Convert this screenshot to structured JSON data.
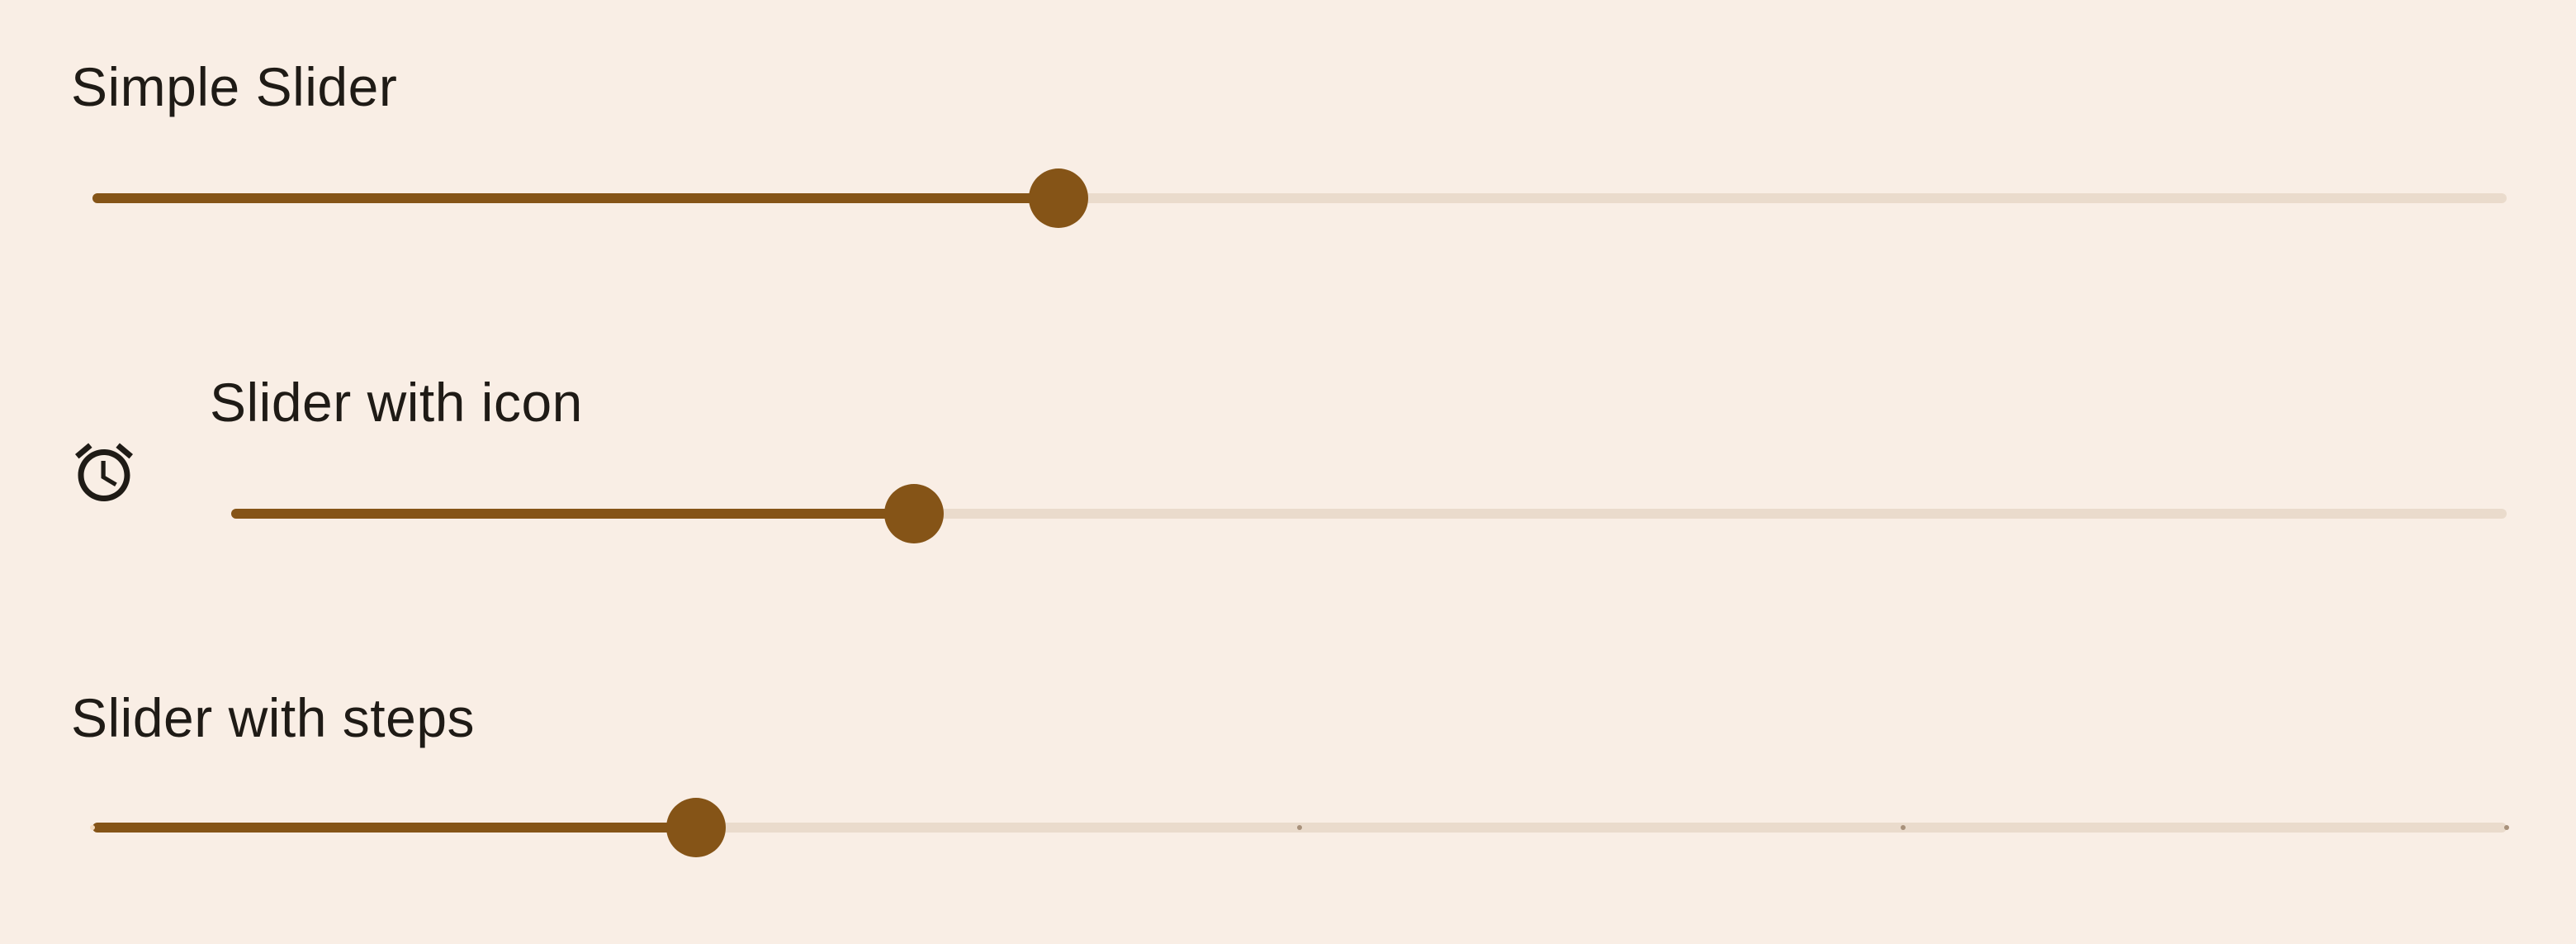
{
  "sliders": {
    "simple": {
      "label": "Simple Slider",
      "value": 0.4
    },
    "with_icon": {
      "label": "Slider with icon",
      "icon": "alarm-clock-icon",
      "value": 0.3
    },
    "with_steps": {
      "label": "Slider with steps",
      "value": 0.25,
      "steps": 5
    }
  },
  "colors": {
    "background": "#f9eee5",
    "active_track": "#855417",
    "inactive_track": "#eadbcc",
    "thumb": "#855417",
    "text": "#1f1b16"
  }
}
